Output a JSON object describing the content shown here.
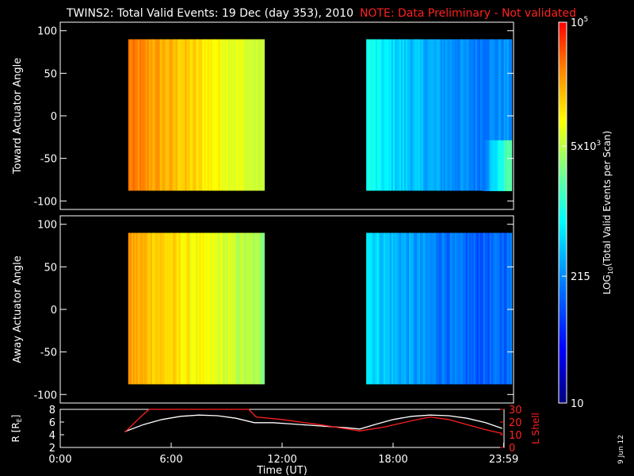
{
  "header": {
    "title": "TWINS2: Total Valid Events: 19 Dec (day 353), 2010",
    "note": "NOTE: Data Preliminary - Not validated",
    "note_color": "#ff2020"
  },
  "footer": {
    "date_stamp": "9 Jun 12"
  },
  "chart_data": [
    {
      "type": "heatmap",
      "panel": "toward",
      "ylabel": "Toward Actuator Angle",
      "ylim": [
        -110,
        110
      ],
      "yticks": [
        "100",
        "50",
        "0",
        "-50",
        "-100"
      ],
      "xlim": [
        0,
        24
      ],
      "data_time_ranges": [
        [
          3.6,
          10.8
        ],
        [
          16.2,
          23.9
        ]
      ],
      "angle_range": [
        -88,
        90
      ],
      "grid": false
    },
    {
      "type": "heatmap",
      "panel": "away",
      "ylabel": "Away Actuator Angle",
      "ylim": [
        -110,
        110
      ],
      "yticks": [
        "100",
        "50",
        "0",
        "-50",
        "-100"
      ],
      "xlim": [
        0,
        24
      ],
      "data_time_ranges": [
        [
          3.6,
          10.8
        ],
        [
          16.2,
          23.9
        ]
      ],
      "angle_range": [
        -88,
        90
      ],
      "grid": false
    },
    {
      "type": "line",
      "panel": "orbit",
      "xlabel": "Time (UT)",
      "xticks": [
        "0:00",
        "6:00",
        "12:00",
        "18:00",
        "23:59"
      ],
      "xlim": [
        0,
        24
      ],
      "ylabel_left": "R [R",
      "ylabel_left_sub": "E",
      "ylabel_left_end": "]",
      "ylabel_right": "L Shell",
      "ylim_left": [
        2,
        8
      ],
      "ylim_right": [
        0,
        30
      ],
      "yticks_left": [
        "8",
        "6",
        "4",
        "2"
      ],
      "yticks_right": [
        "30",
        "20",
        "10",
        "0"
      ],
      "series": [
        {
          "color": "#ffffff",
          "axis": "left",
          "x": [
            3.5,
            4.5,
            5.5,
            6.5,
            7.5,
            8.5,
            9.5,
            10.5,
            11.5,
            12.5,
            13.5,
            14.5,
            15.5,
            16.2,
            17.0,
            18.0,
            19.0,
            20.0,
            21.0,
            22.0,
            23.0,
            23.9
          ],
          "y": [
            4.5,
            5.6,
            6.4,
            6.9,
            7.1,
            7.0,
            6.6,
            5.9,
            5.9,
            5.7,
            5.5,
            5.3,
            5.1,
            4.9,
            5.6,
            6.4,
            6.9,
            7.1,
            7.0,
            6.6,
            5.9,
            5.0
          ]
        },
        {
          "color": "#ff2020",
          "axis": "right",
          "x": [
            3.5,
            4.2,
            4.8,
            10.2,
            10.6,
            12.0,
            14.0,
            16.2,
            17.5,
            19.0,
            20.0,
            21.0,
            22.0,
            23.0,
            23.9
          ],
          "y": [
            12,
            22,
            30,
            30,
            24,
            22,
            18,
            13,
            16,
            21,
            24,
            22,
            18,
            14,
            11
          ]
        }
      ]
    }
  ],
  "colorbar": {
    "ylabel": "LOG",
    "ylabel_sub": "10",
    "ylabel_end": "(Total Valid Events per Scan)",
    "range": [
      10,
      100000
    ],
    "ticks": [
      {
        "value": 100000,
        "base": "10",
        "exp": "5"
      },
      {
        "value": 5000,
        "base": "5x10",
        "exp": "3"
      },
      {
        "value": 215,
        "base": "215",
        "exp": ""
      },
      {
        "value": 10,
        "base": "10",
        "exp": ""
      }
    ],
    "stops": [
      "#000080",
      "#0000ff",
      "#0080ff",
      "#00ffff",
      "#80ff80",
      "#ffff00",
      "#ff8000",
      "#ff0000"
    ]
  }
}
